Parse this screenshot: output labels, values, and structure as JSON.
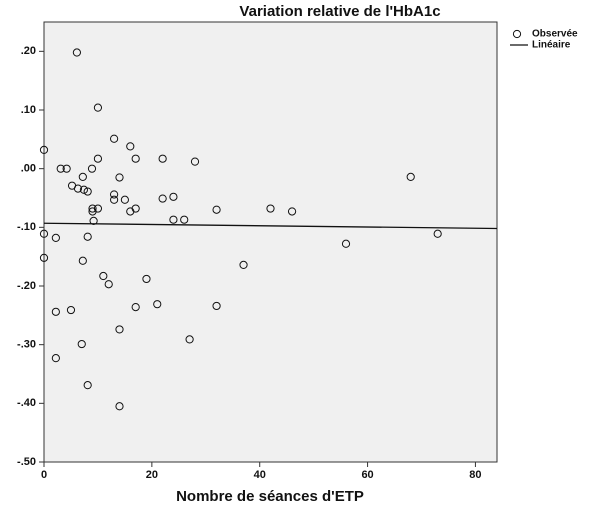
{
  "chart_data": {
    "type": "scatter",
    "title": "Variation relative de l'HbA1c",
    "x_label": "Nombre de séances d'ETP",
    "xlim": [
      0,
      84
    ],
    "xticks": [
      0,
      20,
      40,
      60,
      80
    ],
    "ylim": [
      -0.5,
      0.25
    ],
    "yticks": [
      {
        "value": 0.2,
        "label": ".20"
      },
      {
        "value": 0.1,
        "label": ".10"
      },
      {
        "value": 0,
        "label": ".00"
      },
      {
        "value": -0.1,
        "label": "-.10"
      },
      {
        "value": -0.2,
        "label": "-.20"
      },
      {
        "value": -0.3,
        "label": "-.30"
      },
      {
        "value": -0.4,
        "label": "-.40"
      },
      {
        "value": -0.5,
        "label": "-.50"
      }
    ],
    "series": [
      {
        "name": "Observée",
        "mode": "points",
        "color": "#111111",
        "x": [
          0,
          6.1,
          10,
          3.1,
          4.2,
          0,
          0,
          2.2,
          5.2,
          6.3,
          7.2,
          7.4,
          8.1,
          8.9,
          10,
          13,
          16,
          17,
          14,
          13,
          13,
          15,
          16,
          17,
          9,
          9,
          10,
          9.2,
          8.1,
          7.2,
          11,
          12,
          19,
          22,
          22,
          24,
          24,
          26,
          28,
          32,
          42,
          46,
          56,
          68,
          73,
          37,
          17,
          21,
          32,
          27,
          5,
          2.2,
          14,
          7,
          2.2,
          8.1,
          14
        ],
        "values": [
          0.032,
          0.198,
          0.104,
          0,
          0,
          -0.111,
          -0.152,
          -0.118,
          -0.029,
          -0.034,
          -0.014,
          -0.036,
          -0.039,
          0,
          0.017,
          0.051,
          0.038,
          0.017,
          -0.015,
          -0.044,
          -0.053,
          -0.053,
          -0.073,
          -0.068,
          -0.068,
          -0.073,
          -0.068,
          -0.089,
          -0.116,
          -0.157,
          -0.183,
          -0.197,
          -0.188,
          0.017,
          -0.051,
          -0.048,
          -0.087,
          -0.087,
          0.012,
          -0.07,
          -0.068,
          -0.073,
          -0.128,
          -0.014,
          -0.111,
          -0.164,
          -0.236,
          -0.231,
          -0.234,
          -0.291,
          -0.241,
          -0.244,
          -0.274,
          -0.299,
          -0.323,
          -0.369,
          -0.405
        ]
      },
      {
        "name": "Linéaire",
        "mode": "line",
        "color": "#111111",
        "x": [
          0,
          84
        ],
        "values": [
          -0.093,
          -0.102
        ]
      }
    ]
  }
}
